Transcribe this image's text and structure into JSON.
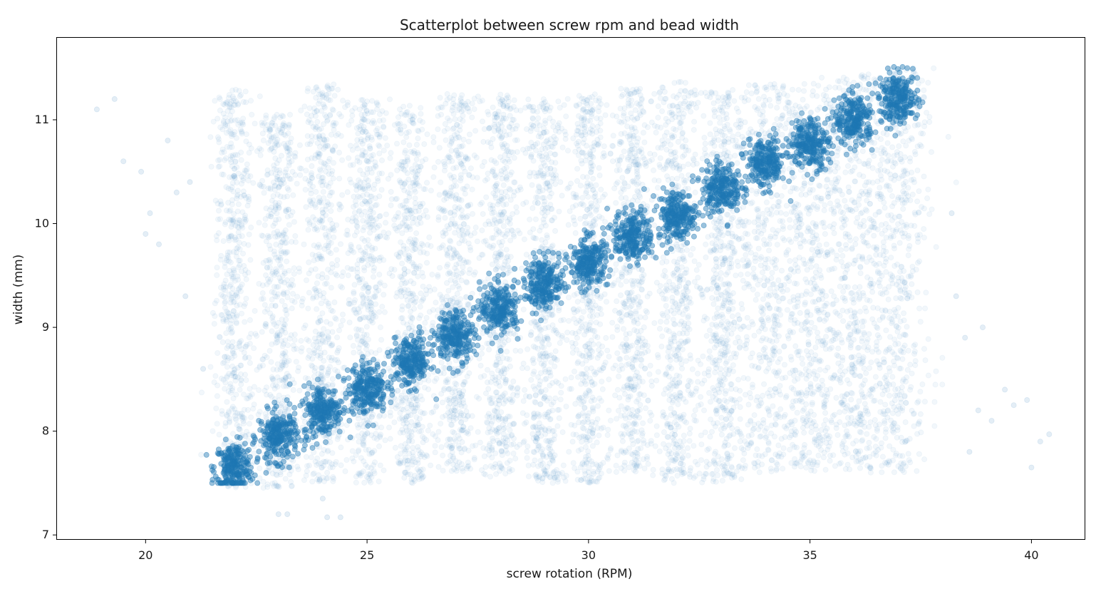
{
  "colors": {
    "accent": "#1f77b4",
    "frame": "#000000",
    "background": "#ffffff"
  },
  "chart_data": {
    "type": "scatter",
    "title": "Scatterplot between screw rpm and bead width",
    "xlabel": "screw rotation (RPM)",
    "ylabel": "width (mm)",
    "xlim": [
      18,
      41.2
    ],
    "ylim": [
      6.96,
      11.79
    ],
    "x_ticks": [
      20,
      25,
      30,
      35,
      40
    ],
    "y_ticks": [
      7,
      8,
      9,
      10,
      11
    ],
    "grid": false,
    "point_alpha": 0.06,
    "clusters": [
      {
        "x": 22,
        "center_y": 7.65,
        "band": [
          7.45,
          11.3
        ]
      },
      {
        "x": 23,
        "center_y": 7.95,
        "band": [
          7.45,
          11.05
        ]
      },
      {
        "x": 24,
        "center_y": 8.2,
        "band": [
          7.5,
          11.35
        ]
      },
      {
        "x": 25,
        "center_y": 8.42,
        "band": [
          7.5,
          11.2
        ]
      },
      {
        "x": 26,
        "center_y": 8.67,
        "band": [
          7.5,
          11.15
        ]
      },
      {
        "x": 27,
        "center_y": 8.93,
        "band": [
          7.55,
          11.25
        ]
      },
      {
        "x": 28,
        "center_y": 9.18,
        "band": [
          7.55,
          11.25
        ]
      },
      {
        "x": 29,
        "center_y": 9.42,
        "band": [
          7.5,
          11.2
        ]
      },
      {
        "x": 30,
        "center_y": 9.63,
        "band": [
          7.5,
          11.25
        ]
      },
      {
        "x": 31,
        "center_y": 9.88,
        "band": [
          7.6,
          11.3
        ]
      },
      {
        "x": 32,
        "center_y": 10.08,
        "band": [
          7.5,
          11.4
        ]
      },
      {
        "x": 33,
        "center_y": 10.35,
        "band": [
          7.5,
          11.3
        ]
      },
      {
        "x": 34,
        "center_y": 10.58,
        "band": [
          7.6,
          11.35
        ]
      },
      {
        "x": 35,
        "center_y": 10.78,
        "band": [
          7.6,
          11.35
        ]
      },
      {
        "x": 36,
        "center_y": 11.0,
        "band": [
          7.6,
          11.45
        ]
      },
      {
        "x": 37,
        "center_y": 11.2,
        "band": [
          7.6,
          11.5
        ]
      }
    ],
    "outliers": [
      [
        18.9,
        11.1
      ],
      [
        19.3,
        11.2
      ],
      [
        19.5,
        10.6
      ],
      [
        19.9,
        10.5
      ],
      [
        20.0,
        9.9
      ],
      [
        20.3,
        9.8
      ],
      [
        20.5,
        10.8
      ],
      [
        20.9,
        9.3
      ],
      [
        21.3,
        8.6
      ],
      [
        21.0,
        10.4
      ],
      [
        20.1,
        10.1
      ],
      [
        20.7,
        10.3
      ],
      [
        23.0,
        7.2
      ],
      [
        23.2,
        7.2
      ],
      [
        24.1,
        7.17
      ],
      [
        24.4,
        7.17
      ],
      [
        24.0,
        7.35
      ],
      [
        38.2,
        10.1
      ],
      [
        38.3,
        9.3
      ],
      [
        38.5,
        8.9
      ],
      [
        38.9,
        9.0
      ],
      [
        39.1,
        8.1
      ],
      [
        39.4,
        8.4
      ],
      [
        39.6,
        8.25
      ],
      [
        39.9,
        8.3
      ],
      [
        40.2,
        7.9
      ],
      [
        40.4,
        7.97
      ],
      [
        40.0,
        7.65
      ],
      [
        38.6,
        7.8
      ],
      [
        38.8,
        8.2
      ]
    ]
  }
}
